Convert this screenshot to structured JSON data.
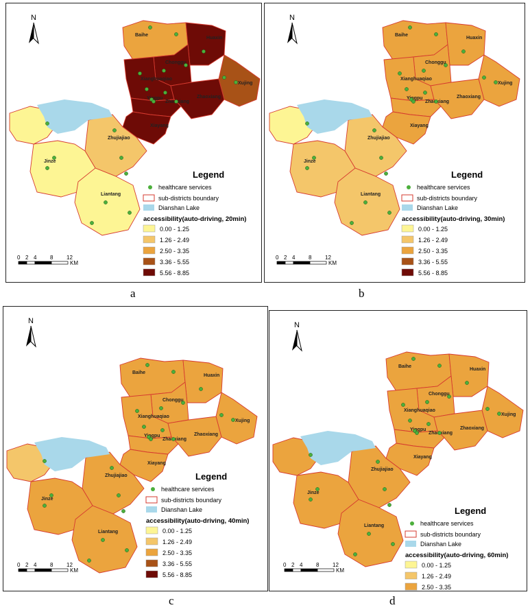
{
  "legend_title": "Legend",
  "legend_items": {
    "healthcare": "healthcare services",
    "boundary": "sub-districts boundary",
    "lake": "Dianshan Lake"
  },
  "class_labels": [
    "0.00 - 1.25",
    "1.26 - 2.49",
    "2.50 - 3.35",
    "3.36 - 5.55",
    "5.56 - 8.85"
  ],
  "class_colors": [
    "#fdf594",
    "#f4c66a",
    "#eba43e",
    "#a85217",
    "#6e0b06"
  ],
  "lake_color": "#a9d8ea",
  "boundary_color": "#d63a2f",
  "north_label": "N",
  "scale": {
    "ticks": [
      "0",
      "2",
      "4",
      "8",
      "12"
    ],
    "unit": "KM"
  },
  "district_labels": [
    "Baihe",
    "Huaxin",
    "Chonggu",
    "Xianghuaqiao",
    "Xujing",
    "Yingpu",
    "Zhaoxiang",
    "Zhaoxiang",
    "Xiayang",
    "Zhujiajiao",
    "Jinze",
    "Liantang"
  ],
  "panels": [
    {
      "caption": "a",
      "legend_sub": "accessibility(auto-driving, 20min)",
      "class_count": 5
    },
    {
      "caption": "b",
      "legend_sub": "accessibility(auto-driving, 30min)",
      "class_count": 5
    },
    {
      "caption": "c",
      "legend_sub": "accessibility(auto-driving, 40min)",
      "class_count": 5
    },
    {
      "caption": "d",
      "legend_sub": "accessibility(auto-driving, 60min)",
      "class_count": 3
    }
  ]
}
